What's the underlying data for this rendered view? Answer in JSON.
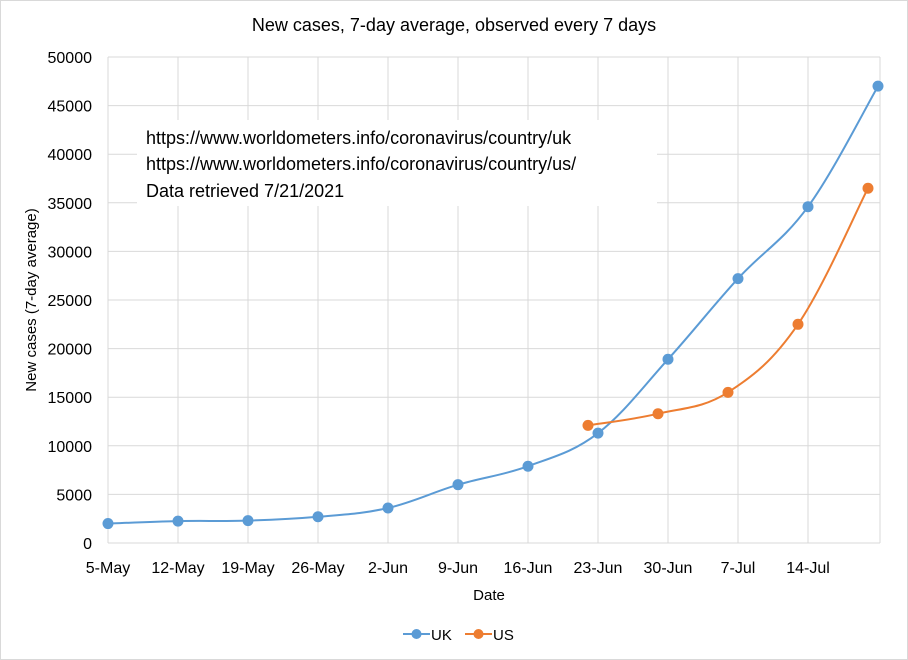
{
  "chart_data": {
    "type": "line",
    "title": "New cases, 7-day average, observed every 7 days",
    "xlabel": "Date",
    "ylabel": "New cases (7-day average)",
    "x_tick_labels": [
      "5-May",
      "12-May",
      "19-May",
      "26-May",
      "2-Jun",
      "9-Jun",
      "16-Jun",
      "23-Jun",
      "30-Jun",
      "7-Jul",
      "14-Jul"
    ],
    "ylim": [
      0,
      50000
    ],
    "y_ticks": [
      0,
      5000,
      10000,
      15000,
      20000,
      25000,
      30000,
      35000,
      40000,
      45000,
      50000
    ],
    "grid": true,
    "legend_position": "bottom",
    "annotation_lines": [
      "https://www.worldometers.info/coronavirus/country/uk",
      "https://www.worldometers.info/coronavirus/country/us/",
      "Data retrieved  7/21/2021"
    ],
    "series": [
      {
        "name": "UK",
        "color": "#5b9bd5",
        "x": [
          "5-May",
          "12-May",
          "19-May",
          "26-May",
          "2-Jun",
          "9-Jun",
          "16-Jun",
          "23-Jun",
          "30-Jun",
          "7-Jul",
          "14-Jul",
          "21-Jul"
        ],
        "values": [
          2000,
          2250,
          2300,
          2700,
          3600,
          6000,
          7900,
          11300,
          18900,
          27200,
          34600,
          47000
        ]
      },
      {
        "name": "US",
        "color": "#ed7d31",
        "x": [
          "22-Jun",
          "29-Jun",
          "6-Jul",
          "13-Jul",
          "20-Jul"
        ],
        "values": [
          12100,
          13300,
          15500,
          22500,
          36500
        ]
      }
    ]
  }
}
